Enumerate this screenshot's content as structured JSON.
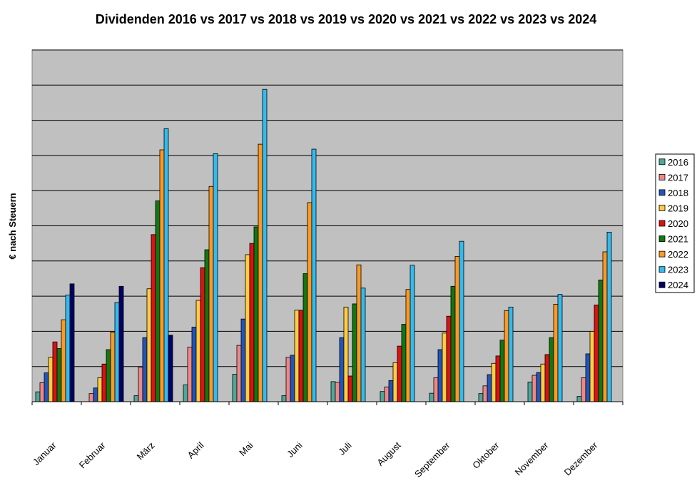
{
  "chart_data": {
    "type": "bar",
    "title": "Dividenden 2016 vs 2017 vs 2018 vs 2019 vs 2020 vs 2021 vs 2022 vs 2023 vs 2024",
    "ylabel": "€ nach Steuern",
    "xlabel": "",
    "ylim": [
      0,
      1000
    ],
    "grid": true,
    "legend_position": "right",
    "categories": [
      "Januar",
      "Februar",
      "März",
      "April",
      "Mai",
      "Juni",
      "Juli",
      "August",
      "September",
      "Oktober",
      "November",
      "Dezember"
    ],
    "series": [
      {
        "name": "2016",
        "color": "#4da89b",
        "values": [
          28,
          0,
          17,
          48,
          78,
          17,
          57,
          29,
          24,
          23,
          56,
          15
        ]
      },
      {
        "name": "2017",
        "color": "#ee8888",
        "values": [
          54,
          23,
          98,
          155,
          160,
          126,
          55,
          42,
          68,
          45,
          75,
          68
        ]
      },
      {
        "name": "2018",
        "color": "#2255bb",
        "values": [
          82,
          39,
          182,
          212,
          235,
          132,
          182,
          60,
          148,
          77,
          83,
          136
        ]
      },
      {
        "name": "2019",
        "color": "#ffcc44",
        "values": [
          126,
          68,
          321,
          288,
          418,
          260,
          269,
          111,
          195,
          109,
          107,
          200
        ]
      },
      {
        "name": "2020",
        "color": "#dd1111",
        "values": [
          170,
          107,
          475,
          381,
          450,
          260,
          73,
          158,
          243,
          130,
          134,
          275
        ]
      },
      {
        "name": "2021",
        "color": "#117711",
        "values": [
          151,
          148,
          571,
          432,
          497,
          364,
          278,
          220,
          328,
          175,
          182,
          346
        ]
      },
      {
        "name": "2022",
        "color": "#ff9922",
        "values": [
          233,
          198,
          716,
          612,
          732,
          566,
          389,
          319,
          413,
          259,
          277,
          426
        ]
      },
      {
        "name": "2023",
        "color": "#33bbee",
        "values": [
          303,
          282,
          776,
          705,
          888,
          718,
          323,
          388,
          456,
          269,
          305,
          482
        ]
      },
      {
        "name": "2024",
        "color": "#000066",
        "values": [
          335,
          328,
          189,
          0,
          0,
          0,
          0,
          0,
          0,
          0,
          0,
          0
        ]
      }
    ],
    "colors": {
      "plot_background": "#c0c0c0",
      "gridline": "#000000",
      "bar_outline": "#000000"
    }
  }
}
